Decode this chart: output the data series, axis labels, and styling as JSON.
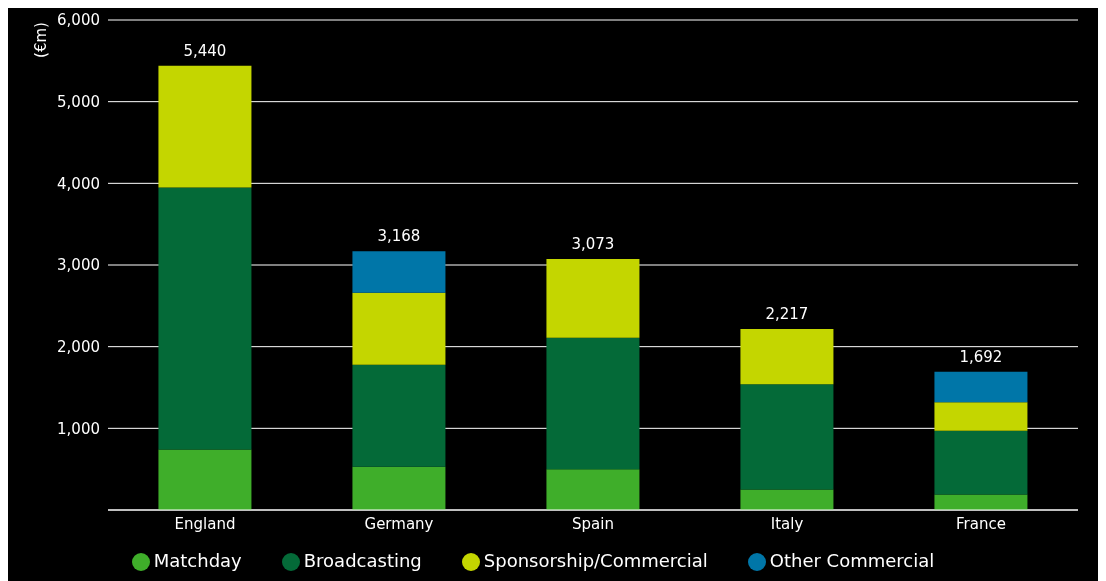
{
  "chart_data": {
    "type": "bar",
    "stacked": true,
    "ylabel": "(€m)",
    "categories": [
      "England",
      "Germany",
      "Spain",
      "Italy",
      "France"
    ],
    "series": [
      {
        "name": "Matchday",
        "color": "#3fae2a",
        "values": [
          740,
          530,
          500,
          250,
          190
        ]
      },
      {
        "name": "Broadcasting",
        "color": "#046a38",
        "values": [
          3210,
          1250,
          1610,
          1290,
          780
        ]
      },
      {
        "name": "Sponsorship/Commercial",
        "color": "#c4d600",
        "values": [
          1490,
          880,
          963,
          677,
          350
        ]
      },
      {
        "name": "Other Commercial",
        "color": "#0076a8",
        "values": [
          null,
          508,
          null,
          null,
          372
        ]
      }
    ],
    "totals": [
      "5,440",
      "3,168",
      "3,073",
      "2,217",
      "1,692"
    ],
    "ylim": [
      0,
      6000
    ],
    "yticks": [
      {
        "value": 1000,
        "label": "1,000"
      },
      {
        "value": 2000,
        "label": "2,000"
      },
      {
        "value": 3000,
        "label": "3,000"
      },
      {
        "value": 4000,
        "label": "4,000"
      },
      {
        "value": 5000,
        "label": "5,000"
      },
      {
        "value": 6000,
        "label": "6,000"
      }
    ],
    "grid": "y",
    "legend": "bottom"
  }
}
